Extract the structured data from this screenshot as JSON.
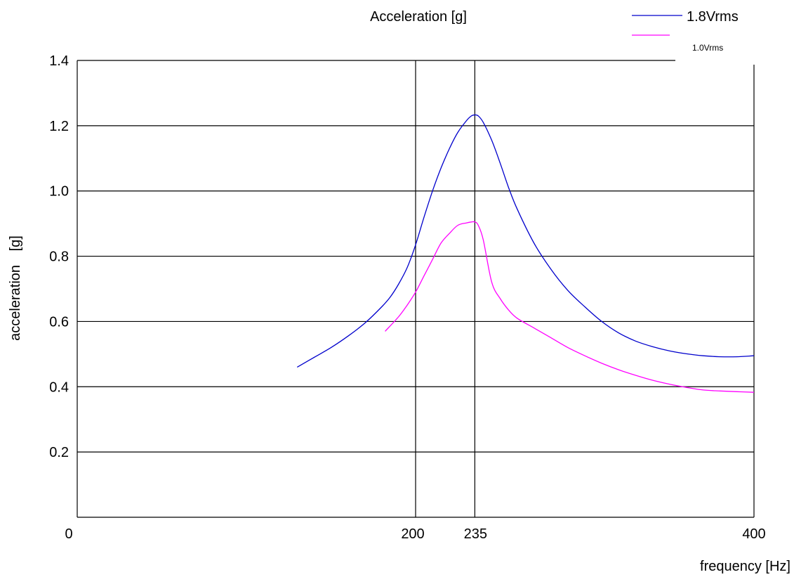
{
  "chart_data": {
    "type": "line",
    "title": "Acceleration [g]",
    "xlabel": "frequency [Hz]",
    "ylabel": "acceleration [g]",
    "xlim": [
      0,
      400
    ],
    "ylim": [
      0,
      1.4
    ],
    "x_tick_labels": [
      "0",
      "200",
      "235",
      "400"
    ],
    "y_tick_labels": [
      "0.2",
      "0.4",
      "0.6",
      "0.8",
      "1.0",
      "1.2",
      "1.4"
    ],
    "grid": "horizontal lines every 0.2 g; vertical lines at 200 Hz and 235 Hz",
    "legend_position": "top-right",
    "series": [
      {
        "name": "1.8Vrms",
        "color": "#0000cc",
        "x": [
          130,
          140,
          150,
          160,
          170,
          180,
          185,
          190,
          195,
          200,
          205,
          210,
          215,
          220,
          225,
          230,
          233,
          235,
          237,
          240,
          245,
          250,
          255,
          260,
          270,
          280,
          290,
          300,
          310,
          320,
          330,
          340,
          350,
          360,
          370,
          380,
          390,
          400
        ],
        "y": [
          0.46,
          0.49,
          0.52,
          0.555,
          0.595,
          0.645,
          0.675,
          0.715,
          0.765,
          0.835,
          0.92,
          1.0,
          1.07,
          1.13,
          1.18,
          1.215,
          1.23,
          1.233,
          1.23,
          1.21,
          1.155,
          1.085,
          1.01,
          0.945,
          0.84,
          0.76,
          0.695,
          0.645,
          0.6,
          0.565,
          0.54,
          0.523,
          0.51,
          0.501,
          0.495,
          0.492,
          0.492,
          0.495
        ]
      },
      {
        "name": "1.0Vrms",
        "color": "#ff00ff",
        "x": [
          182,
          190,
          195,
          200,
          205,
          210,
          215,
          220,
          225,
          230,
          233,
          235,
          237,
          240,
          245,
          250,
          255,
          260,
          270,
          280,
          290,
          300,
          310,
          320,
          330,
          340,
          350,
          360,
          370,
          380,
          390,
          400
        ],
        "y": [
          0.57,
          0.615,
          0.65,
          0.69,
          0.74,
          0.79,
          0.84,
          0.87,
          0.895,
          0.902,
          0.905,
          0.905,
          0.895,
          0.85,
          0.72,
          0.67,
          0.635,
          0.61,
          0.58,
          0.55,
          0.52,
          0.495,
          0.472,
          0.452,
          0.435,
          0.42,
          0.408,
          0.398,
          0.39,
          0.387,
          0.385,
          0.383
        ]
      }
    ]
  }
}
